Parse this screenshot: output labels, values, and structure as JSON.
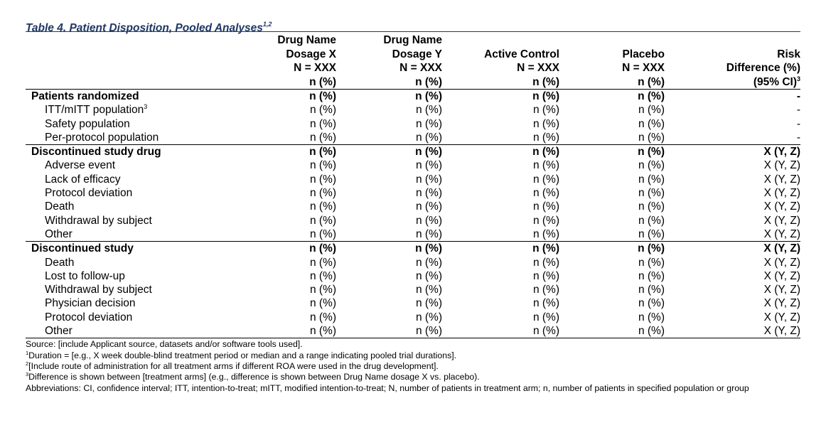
{
  "title": {
    "text": "Table 4. Patient Disposition, Pooled Analyses",
    "sup": "1,2"
  },
  "columns": [
    {
      "lines": [
        "",
        "",
        "",
        ""
      ]
    },
    {
      "lines": [
        "Drug Name",
        "Dosage X",
        "N = XXX",
        "n (%)"
      ]
    },
    {
      "lines": [
        "Drug Name",
        "Dosage Y",
        "N = XXX",
        "n (%)"
      ]
    },
    {
      "lines": [
        "Active Control",
        "N = XXX",
        "n (%)"
      ]
    },
    {
      "lines": [
        "Placebo",
        "N = XXX",
        "n (%)"
      ]
    },
    {
      "lines": [
        "Risk",
        "Difference (%)",
        "(95% CI)"
      ],
      "sup": "3"
    }
  ],
  "rows": [
    {
      "label": "Patients randomized",
      "bold": true,
      "group_start": true,
      "values": [
        "n (%)",
        "n (%)",
        "n (%)",
        "n (%)",
        "-"
      ]
    },
    {
      "label": "ITT/mITT population",
      "sup": "3",
      "values": [
        "n (%)",
        "n (%)",
        "n (%)",
        "n (%)",
        "-"
      ]
    },
    {
      "label": "Safety population",
      "values": [
        "n (%)",
        "n (%)",
        "n (%)",
        "n (%)",
        "-"
      ]
    },
    {
      "label": "Per-protocol population",
      "values": [
        "n (%)",
        "n (%)",
        "n (%)",
        "n (%)",
        "-"
      ]
    },
    {
      "label": "Discontinued study drug",
      "bold": true,
      "group_start": true,
      "values": [
        "n (%)",
        "n (%)",
        "n (%)",
        "n (%)",
        "X (Y, Z)"
      ]
    },
    {
      "label": "Adverse event",
      "values": [
        "n (%)",
        "n (%)",
        "n (%)",
        "n (%)",
        "X (Y, Z)"
      ]
    },
    {
      "label": "Lack of efficacy",
      "values": [
        "n (%)",
        "n (%)",
        "n (%)",
        "n (%)",
        "X (Y, Z)"
      ]
    },
    {
      "label": "Protocol deviation",
      "values": [
        "n (%)",
        "n (%)",
        "n (%)",
        "n (%)",
        "X (Y, Z)"
      ]
    },
    {
      "label": "Death",
      "values": [
        "n (%)",
        "n (%)",
        "n (%)",
        "n (%)",
        "X (Y, Z)"
      ]
    },
    {
      "label": "Withdrawal by subject",
      "values": [
        "n (%)",
        "n (%)",
        "n (%)",
        "n (%)",
        "X (Y, Z)"
      ]
    },
    {
      "label": "Other",
      "values": [
        "n (%)",
        "n (%)",
        "n (%)",
        "n (%)",
        "X (Y, Z)"
      ]
    },
    {
      "label": "Discontinued study",
      "bold": true,
      "group_start": true,
      "values": [
        "n (%)",
        "n (%)",
        "n (%)",
        "n (%)",
        "X (Y, Z)"
      ]
    },
    {
      "label": "Death",
      "values": [
        "n (%)",
        "n (%)",
        "n (%)",
        "n (%)",
        "X (Y, Z)"
      ]
    },
    {
      "label": "Lost to follow-up",
      "values": [
        "n (%)",
        "n (%)",
        "n (%)",
        "n (%)",
        "X (Y, Z)"
      ]
    },
    {
      "label": "Withdrawal by subject",
      "values": [
        "n (%)",
        "n (%)",
        "n (%)",
        "n (%)",
        "X (Y, Z)"
      ]
    },
    {
      "label": "Physician decision",
      "values": [
        "n (%)",
        "n (%)",
        "n (%)",
        "n (%)",
        "X (Y, Z)"
      ]
    },
    {
      "label": "Protocol deviation",
      "values": [
        "n (%)",
        "n (%)",
        "n (%)",
        "n (%)",
        "X (Y, Z)"
      ]
    },
    {
      "label": "Other",
      "values": [
        "n (%)",
        "n (%)",
        "n (%)",
        "n (%)",
        "X (Y, Z)"
      ]
    }
  ],
  "notes": {
    "source": "Source: [include Applicant source, datasets and/or software tools used].",
    "footnotes": [
      {
        "mark": "1",
        "text": "Duration = [e.g., X week double-blind treatment period or median and a range indicating pooled trial durations]."
      },
      {
        "mark": "2",
        "text": "[Include route of administration for all treatment arms if different ROA were used in the drug development]."
      },
      {
        "mark": "3",
        "text": "Difference is shown between [treatment arms] (e.g., difference is shown between Drug Name dosage X vs. placebo)."
      }
    ],
    "abbreviations": "Abbreviations: CI, confidence interval; ITT, intention-to-treat; mITT, modified intention-to-treat; N, number of patients in treatment arm; n, number of patients in specified population or group"
  }
}
